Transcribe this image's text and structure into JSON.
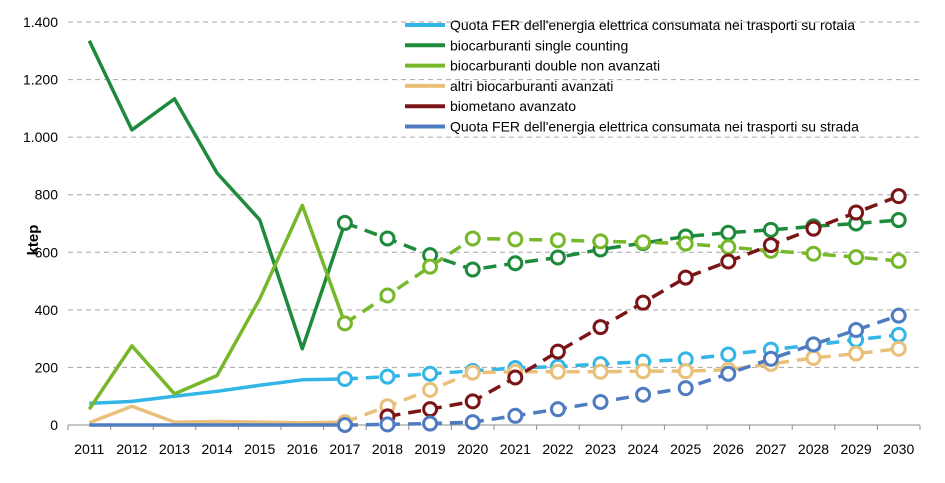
{
  "chart_data": {
    "type": "line",
    "title": "",
    "ylabel": "ktep",
    "xlabel": "",
    "ylim": [
      0,
      1400
    ],
    "y_ticks": [
      0,
      200,
      400,
      600,
      800,
      1000,
      1200,
      1400
    ],
    "y_tick_labels": [
      "0",
      "200",
      "400",
      "600",
      "800",
      "1.000",
      "1.200",
      "1.400"
    ],
    "x": [
      2011,
      2012,
      2013,
      2014,
      2015,
      2016,
      2017,
      2018,
      2019,
      2020,
      2021,
      2022,
      2023,
      2024,
      2025,
      2026,
      2027,
      2028,
      2029,
      2030
    ],
    "x_labels": [
      "2011",
      "2012",
      "2013",
      "2014",
      "2015",
      "2016",
      "2017",
      "2018",
      "2019",
      "2020",
      "2021",
      "2022",
      "2023",
      "2024",
      "2025",
      "2026",
      "2027",
      "2028",
      "2029",
      "2030"
    ],
    "historical_through": 2017,
    "grid": "horizontal dashed",
    "legend_position": "top-right",
    "series": [
      {
        "name": "Quota FER dell'energia elettrica consumata nei trasporti su rotaia",
        "color": "#33b5e8",
        "values": [
          75,
          82,
          100,
          117,
          138,
          157,
          160,
          168,
          178,
          188,
          198,
          203,
          212,
          220,
          228,
          245,
          262,
          278,
          296,
          313
        ]
      },
      {
        "name": "biocarburanti single counting",
        "color": "#1e8a3c",
        "values": [
          1335,
          1025,
          1133,
          875,
          713,
          265,
          702,
          648,
          590,
          540,
          562,
          582,
          610,
          632,
          655,
          668,
          678,
          690,
          700,
          712
        ]
      },
      {
        "name": "biocarburanti double non avanzati",
        "color": "#76b82a",
        "values": [
          55,
          275,
          108,
          172,
          438,
          763,
          353,
          450,
          550,
          648,
          645,
          642,
          638,
          635,
          630,
          618,
          605,
          595,
          583,
          570
        ]
      },
      {
        "name": "altri biocarburanti avanzati",
        "color": "#e8c07a",
        "values": [
          8,
          65,
          10,
          12,
          10,
          8,
          10,
          65,
          122,
          182,
          185,
          185,
          185,
          187,
          187,
          192,
          212,
          233,
          248,
          265
        ]
      },
      {
        "name": "biometano avanzato",
        "color": "#7b1416",
        "values": [
          null,
          null,
          null,
          null,
          null,
          null,
          null,
          30,
          55,
          82,
          165,
          255,
          340,
          425,
          512,
          568,
          625,
          682,
          738,
          795
        ]
      },
      {
        "name": "Quota FER dell'energia elettrica consumata nei trasporti su strada",
        "color": "#4f7cc0",
        "values": [
          0,
          0,
          0,
          0,
          0,
          0,
          0,
          2,
          5,
          10,
          32,
          55,
          80,
          105,
          128,
          178,
          230,
          280,
          330,
          380
        ]
      }
    ]
  }
}
